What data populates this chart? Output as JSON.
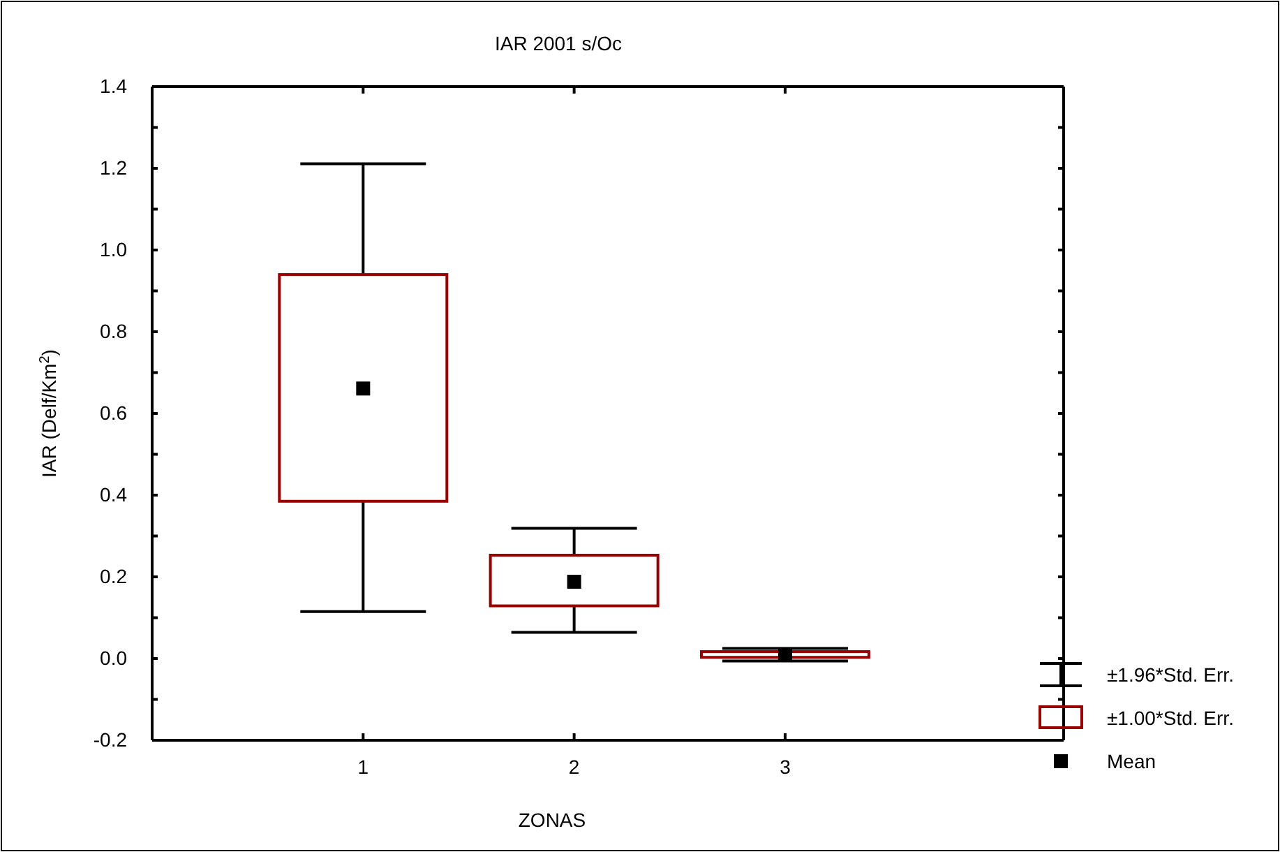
{
  "chart_data": {
    "type": "box",
    "title": "IAR 2001 s/Oc",
    "xlabel": "ZONAS",
    "ylabel": "IAR (Delf/Km$^{2}$)",
    "categories": [
      "1",
      "2",
      "3"
    ],
    "boxes": [
      {
        "low": 0.115,
        "q1": 0.385,
        "q3": 0.94,
        "high": 1.211,
        "mean": 0.661
      },
      {
        "low": 0.064,
        "q1": 0.129,
        "q3": 0.253,
        "high": 0.319,
        "mean": 0.188
      },
      {
        "low": -0.006,
        "q1": 0.003,
        "q3": 0.017,
        "high": 0.025,
        "mean": 0.01
      }
    ],
    "color": "#990000",
    "ylim": [
      -0.2,
      1.4
    ],
    "yticks": [
      {
        "value": -0.2,
        "label": "-0.2"
      },
      {
        "value": -0.1,
        "label": null
      },
      {
        "value": 0,
        "label": "0.0"
      },
      {
        "value": 0.1,
        "label": null
      },
      {
        "value": 0.2,
        "label": "0.2"
      },
      {
        "value": 0.3,
        "label": null
      },
      {
        "value": 0.4,
        "label": "0.4"
      },
      {
        "value": 0.5,
        "label": null
      },
      {
        "value": 0.6,
        "label": "0.6"
      },
      {
        "value": 0.7,
        "label": null
      },
      {
        "value": 0.8,
        "label": "0.8"
      },
      {
        "value": 0.9,
        "label": null
      },
      {
        "value": 1.0,
        "label": "1.0"
      },
      {
        "value": 1.1,
        "label": null
      },
      {
        "value": 1.2,
        "label": "1.2"
      },
      {
        "value": 1.3,
        "label": null
      },
      {
        "value": 1.4,
        "label": "1.4"
      }
    ],
    "marker": "square",
    "annotations": [
      "±1.96*Std. Err.",
      "±1.00*Std. Err.",
      "Mean"
    ]
  }
}
